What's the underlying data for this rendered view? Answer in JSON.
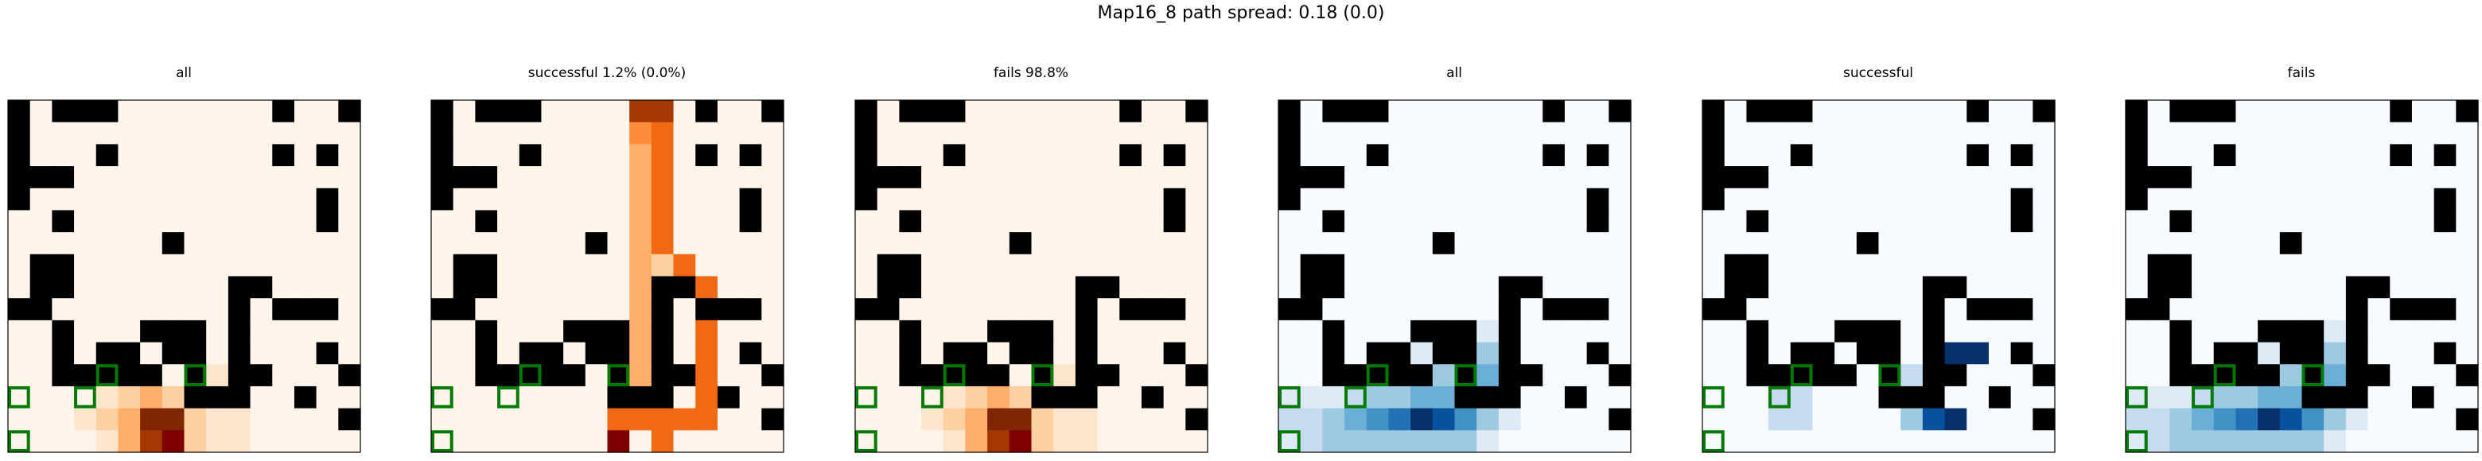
{
  "figure": {
    "suptitle": "Map16_8 path spread: 0.18 (0.0)"
  },
  "chart_data": [
    {
      "type": "heatmap",
      "title": "all",
      "colormap": "Oranges",
      "grid": "16x16",
      "goal_markers": "green outlined squares",
      "obstacles": "black cells"
    },
    {
      "type": "heatmap",
      "title": "successful 1.2% (0.0%)",
      "colormap": "Oranges",
      "grid": "16x16",
      "goal_markers": "green outlined squares",
      "obstacles": "black cells"
    },
    {
      "type": "heatmap",
      "title": "fails 98.8%",
      "colormap": "Oranges",
      "grid": "16x16",
      "goal_markers": "green outlined squares",
      "obstacles": "black cells"
    },
    {
      "type": "heatmap",
      "title": "all",
      "colormap": "Blues",
      "grid": "16x16",
      "goal_markers": "green outlined squares",
      "obstacles": "black cells"
    },
    {
      "type": "heatmap",
      "title": "successful",
      "colormap": "Blues",
      "grid": "16x16",
      "goal_markers": "green outlined squares",
      "obstacles": "black cells"
    },
    {
      "type": "heatmap",
      "title": "fails",
      "colormap": "Blues",
      "grid": "16x16",
      "goal_markers": "green outlined squares",
      "obstacles": "black cells"
    }
  ],
  "map": {
    "obstacles": [
      "1011100000001001",
      "1000000000000000",
      "1000100000001010",
      "1110000000000000",
      "1000000000000010",
      "0010000000000010",
      "0000000100000000",
      "0110000000000000",
      "0110000000110000",
      "1100000000101110",
      "0010001110100000",
      "0010110110100010",
      "0011111010110001",
      "0000000011100100",
      "0000000000000001",
      "0000000000000000"
    ],
    "goals": [
      [
        12,
        4
      ],
      [
        12,
        8
      ],
      [
        13,
        0
      ],
      [
        13,
        3
      ],
      [
        15,
        0
      ]
    ]
  },
  "heat": {
    "all": [
      "0000000000000000",
      "0000000000000000",
      "0000000000000000",
      "0000000000000000",
      "0000000000000000",
      "0000000000000000",
      "0000000000000000",
      "0000000000000000",
      "0000000000000000",
      "0000000000000000",
      "0000000000000000",
      "0000000000000000",
      "0000000001000000",
      "0000123233100000",
      "0001238821100000",
      "0000137921100000"
    ],
    "successful": [
      "0000000007700000",
      "0000000004500000",
      "0000000003500000",
      "0000000003500000",
      "0000000003500000",
      "0000000003500000",
      "0000000003500000",
      "0000000003250000",
      "0000000003055000",
      "0000000003005000",
      "0000000003005000",
      "0000000003005000",
      "0000000003005000",
      "0000000003005000",
      "0000000055555000",
      "0000000090500000"
    ],
    "fails": [
      "0000000000000000",
      "0000000000000000",
      "0000000000000000",
      "0000000000000000",
      "0000000000000000",
      "0000000000000000",
      "0000000000000000",
      "0000000000000000",
      "0000000000000000",
      "0000000000000000",
      "0000000000000000",
      "0000000000000000",
      "0000000001000000",
      "0000123233100000",
      "0001238821100000",
      "0000137921100000"
    ],
    "blues_all": [
      "0000000000000000",
      "0000000000000000",
      "0000000000000000",
      "0000000000000000",
      "0000000000000000",
      "0000000000000000",
      "0000000000000000",
      "0000000000000000",
      "0000000000000000",
      "0000000000000000",
      "0000000011000000",
      "0000011233100000",
      "0011123344100000",
      "1112334434200000",
      "2234569753100000",
      "1233333331000000"
    ],
    "blues_successful": [
      "0000000000000000",
      "0000000000000000",
      "0000000000000000",
      "0000000000000000",
      "0000000000000000",
      "0000000000000000",
      "0000000000000000",
      "0000000000000000",
      "0000000000000000",
      "0000000000000000",
      "0000000000000000",
      "0000000000088000",
      "0000000002900000",
      "0002200003900000",
      "0002200003790000",
      "0000000000000000"
    ],
    "blues_fails": [
      "0000000000000000",
      "0000000000000000",
      "0000000000000000",
      "0000000000000000",
      "0000000000000000",
      "0000000000000000",
      "0000000000000000",
      "0000000000000000",
      "0000000000000000",
      "0000000000000000",
      "0000000011000000",
      "0000011233100000",
      "0011123344100000",
      "1112334434200000",
      "2234569753100000",
      "1233333331000000"
    ]
  }
}
